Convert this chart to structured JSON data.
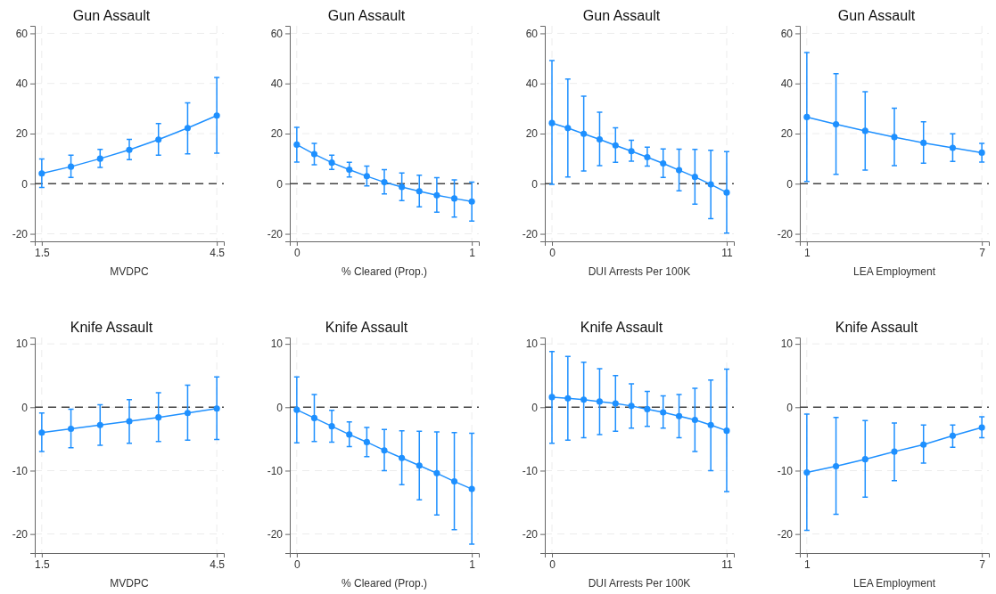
{
  "chart_data": [
    {
      "type": "line",
      "title": "Gun Assault",
      "xlabel": "MVDPC",
      "x": [
        1.5,
        2,
        2.5,
        3,
        3.5,
        4,
        4.5
      ],
      "xlim": [
        1.38,
        4.62
      ],
      "xticks": [
        1.5,
        4.5
      ],
      "ylim": [
        -23,
        63
      ],
      "yticks": [
        -20,
        0,
        20,
        40,
        60
      ],
      "grid": true,
      "marker": "circle",
      "ref_lines": [
        {
          "axis": "y",
          "value": 0,
          "color": "#444444",
          "line_style": "dashed"
        }
      ],
      "series": [
        {
          "color": "#1e90ff",
          "values": [
            4.1,
            6.8,
            10,
            13.5,
            17.6,
            22.2,
            27.2
          ],
          "errors": [
            [
              -1.5,
              9.9
            ],
            [
              2.5,
              11.4
            ],
            [
              6.5,
              13.7
            ],
            [
              9.6,
              17.7
            ],
            [
              11.4,
              24
            ],
            [
              11.9,
              32.3
            ],
            [
              12.2,
              42.4
            ]
          ]
        }
      ]
    },
    {
      "type": "line",
      "title": "Gun Assault",
      "xlabel": "% Cleared (Prop.)",
      "x": [
        0,
        0.1,
        0.2,
        0.3,
        0.4,
        0.5,
        0.6,
        0.7,
        0.8,
        0.9,
        1
      ],
      "xlim": [
        -0.04,
        1.04
      ],
      "xticks": [
        0,
        1
      ],
      "ylim": [
        -23,
        63
      ],
      "yticks": [
        -20,
        0,
        20,
        40,
        60
      ],
      "grid": true,
      "marker": "circle",
      "ref_lines": [
        {
          "axis": "y",
          "value": 0,
          "color": "#444444",
          "line_style": "dashed"
        }
      ],
      "series": [
        {
          "color": "#1e90ff",
          "values": [
            15.6,
            11.8,
            8.4,
            5.6,
            3,
            0.6,
            -1.3,
            -3,
            -4.6,
            -5.9,
            -7.1
          ],
          "errors": [
            [
              8.6,
              22.5
            ],
            [
              7.6,
              16.1
            ],
            [
              5.7,
              11.4
            ],
            [
              2.7,
              8.5
            ],
            [
              -0.9,
              7
            ],
            [
              -4.1,
              5.6
            ],
            [
              -6.7,
              4.3
            ],
            [
              -9.2,
              3.4
            ],
            [
              -11.4,
              2.4
            ],
            [
              -13.3,
              1.5
            ],
            [
              -14.9,
              0.6
            ]
          ]
        }
      ]
    },
    {
      "type": "line",
      "title": "Gun Assault",
      "xlabel": "DUI Arrests Per 100K",
      "x": [
        0,
        1,
        2,
        3,
        4,
        5,
        6,
        7,
        8,
        9,
        10,
        11
      ],
      "xlim": [
        -0.45,
        11.45
      ],
      "xticks": [
        0,
        11
      ],
      "ylim": [
        -23,
        63
      ],
      "yticks": [
        -20,
        0,
        20,
        40,
        60
      ],
      "grid": true,
      "marker": "circle",
      "ref_lines": [
        {
          "axis": "y",
          "value": 0,
          "color": "#444444",
          "line_style": "dashed"
        }
      ],
      "series": [
        {
          "color": "#1e90ff",
          "values": [
            24.2,
            22.2,
            19.9,
            17.7,
            15.3,
            13,
            10.6,
            8.1,
            5.4,
            2.7,
            -0.3,
            -3.5
          ],
          "errors": [
            [
              -0.3,
              49.1
            ],
            [
              2.7,
              41.8
            ],
            [
              5.1,
              34.9
            ],
            [
              7.2,
              28.5
            ],
            [
              8.5,
              22.3
            ],
            [
              9,
              17.3
            ],
            [
              7,
              14.6
            ],
            [
              2.5,
              13.9
            ],
            [
              -2.8,
              13.8
            ],
            [
              -8.2,
              13.7
            ],
            [
              -13.9,
              13.3
            ],
            [
              -19.7,
              12.8
            ]
          ]
        }
      ]
    },
    {
      "type": "line",
      "title": "Gun Assault",
      "xlabel": "LEA Employment",
      "x": [
        1,
        2,
        3,
        4,
        5,
        6,
        7
      ],
      "xlim": [
        0.76,
        7.24
      ],
      "xticks": [
        1,
        7
      ],
      "ylim": [
        -23,
        63
      ],
      "yticks": [
        -20,
        0,
        20,
        40,
        60
      ],
      "grid": true,
      "marker": "circle",
      "ref_lines": [
        {
          "axis": "y",
          "value": 0,
          "color": "#444444",
          "line_style": "dashed"
        }
      ],
      "series": [
        {
          "color": "#1e90ff",
          "values": [
            26.6,
            23.7,
            21.1,
            18.6,
            16.3,
            14.3,
            12.4
          ],
          "errors": [
            [
              0.9,
              52.3
            ],
            [
              3.7,
              43.9
            ],
            [
              5.4,
              36.7
            ],
            [
              7.2,
              30.1
            ],
            [
              8.2,
              24.7
            ],
            [
              8.9,
              19.9
            ],
            [
              8.6,
              16.1
            ]
          ]
        }
      ]
    },
    {
      "type": "line",
      "title": "Knife Assault",
      "xlabel": "MVDPC",
      "x": [
        1.5,
        2,
        2.5,
        3,
        3.5,
        4,
        4.5
      ],
      "xlim": [
        1.38,
        4.62
      ],
      "xticks": [
        1.5,
        4.5
      ],
      "ylim": [
        -23,
        11
      ],
      "yticks": [
        -20,
        -10,
        0,
        10
      ],
      "grid": true,
      "marker": "circle",
      "ref_lines": [
        {
          "axis": "y",
          "value": 0,
          "color": "#444444",
          "line_style": "dashed"
        }
      ],
      "series": [
        {
          "color": "#1e90ff",
          "values": [
            -4,
            -3.4,
            -2.8,
            -2.2,
            -1.6,
            -0.9,
            -0.2
          ],
          "errors": [
            [
              -7,
              -0.9
            ],
            [
              -6.4,
              -0.3
            ],
            [
              -6,
              0.4
            ],
            [
              -5.7,
              1.2
            ],
            [
              -5.4,
              2.3
            ],
            [
              -5.2,
              3.5
            ],
            [
              -5.1,
              4.8
            ]
          ]
        }
      ]
    },
    {
      "type": "line",
      "title": "Knife Assault",
      "xlabel": "% Cleared (Prop.)",
      "x": [
        0,
        0.1,
        0.2,
        0.3,
        0.4,
        0.5,
        0.6,
        0.7,
        0.8,
        0.9,
        1
      ],
      "xlim": [
        -0.04,
        1.04
      ],
      "xticks": [
        0,
        1
      ],
      "ylim": [
        -23,
        11
      ],
      "yticks": [
        -20,
        -10,
        0,
        10
      ],
      "grid": true,
      "marker": "circle",
      "ref_lines": [
        {
          "axis": "y",
          "value": 0,
          "color": "#444444",
          "line_style": "dashed"
        }
      ],
      "series": [
        {
          "color": "#1e90ff",
          "values": [
            -0.4,
            -1.7,
            -3,
            -4.3,
            -5.5,
            -6.8,
            -8,
            -9.2,
            -10.4,
            -11.7,
            -12.9
          ],
          "errors": [
            [
              -5.6,
              4.8
            ],
            [
              -5.4,
              2
            ],
            [
              -5.5,
              -0.5
            ],
            [
              -6.2,
              -2.3
            ],
            [
              -7.8,
              -3.2
            ],
            [
              -10,
              -3.5
            ],
            [
              -12.2,
              -3.7
            ],
            [
              -14.6,
              -3.8
            ],
            [
              -17,
              -3.9
            ],
            [
              -19.3,
              -4
            ],
            [
              -21.6,
              -4.1
            ]
          ]
        }
      ]
    },
    {
      "type": "line",
      "title": "Knife Assault",
      "xlabel": "DUI Arrests Per 100K",
      "x": [
        0,
        1,
        2,
        3,
        4,
        5,
        6,
        7,
        8,
        9,
        10,
        11
      ],
      "xlim": [
        -0.45,
        11.45
      ],
      "xticks": [
        0,
        11
      ],
      "ylim": [
        -23,
        11
      ],
      "yticks": [
        -20,
        -10,
        0,
        10
      ],
      "grid": true,
      "marker": "circle",
      "ref_lines": [
        {
          "axis": "y",
          "value": 0,
          "color": "#444444",
          "line_style": "dashed"
        }
      ],
      "series": [
        {
          "color": "#1e90ff",
          "values": [
            1.6,
            1.4,
            1.2,
            0.9,
            0.6,
            0.2,
            -0.3,
            -0.8,
            -1.4,
            -2,
            -2.8,
            -3.7
          ],
          "errors": [
            [
              -5.7,
              8.8
            ],
            [
              -5.2,
              8
            ],
            [
              -4.8,
              7.1
            ],
            [
              -4.3,
              6.1
            ],
            [
              -3.8,
              5
            ],
            [
              -3.3,
              3.7
            ],
            [
              -3,
              2.5
            ],
            [
              -3.3,
              1.8
            ],
            [
              -4.8,
              2
            ],
            [
              -7,
              3
            ],
            [
              -10,
              4.3
            ],
            [
              -13.3,
              6
            ]
          ]
        }
      ]
    },
    {
      "type": "line",
      "title": "Knife Assault",
      "xlabel": "LEA Employment",
      "x": [
        1,
        2,
        3,
        4,
        5,
        6,
        7
      ],
      "xlim": [
        0.76,
        7.24
      ],
      "xticks": [
        1,
        7
      ],
      "ylim": [
        -23,
        11
      ],
      "yticks": [
        -20,
        -10,
        0,
        10
      ],
      "grid": true,
      "marker": "circle",
      "ref_lines": [
        {
          "axis": "y",
          "value": 0,
          "color": "#444444",
          "line_style": "dashed"
        }
      ],
      "series": [
        {
          "color": "#1e90ff",
          "values": [
            -10.3,
            -9.3,
            -8.2,
            -7,
            -5.9,
            -4.5,
            -3.2
          ],
          "errors": [
            [
              -19.4,
              -1.1
            ],
            [
              -16.9,
              -1.6
            ],
            [
              -14.2,
              -2.1
            ],
            [
              -11.6,
              -2.5
            ],
            [
              -8.8,
              -2.8
            ],
            [
              -6.3,
              -2.8
            ],
            [
              -4.8,
              -1.5
            ]
          ]
        }
      ]
    }
  ]
}
